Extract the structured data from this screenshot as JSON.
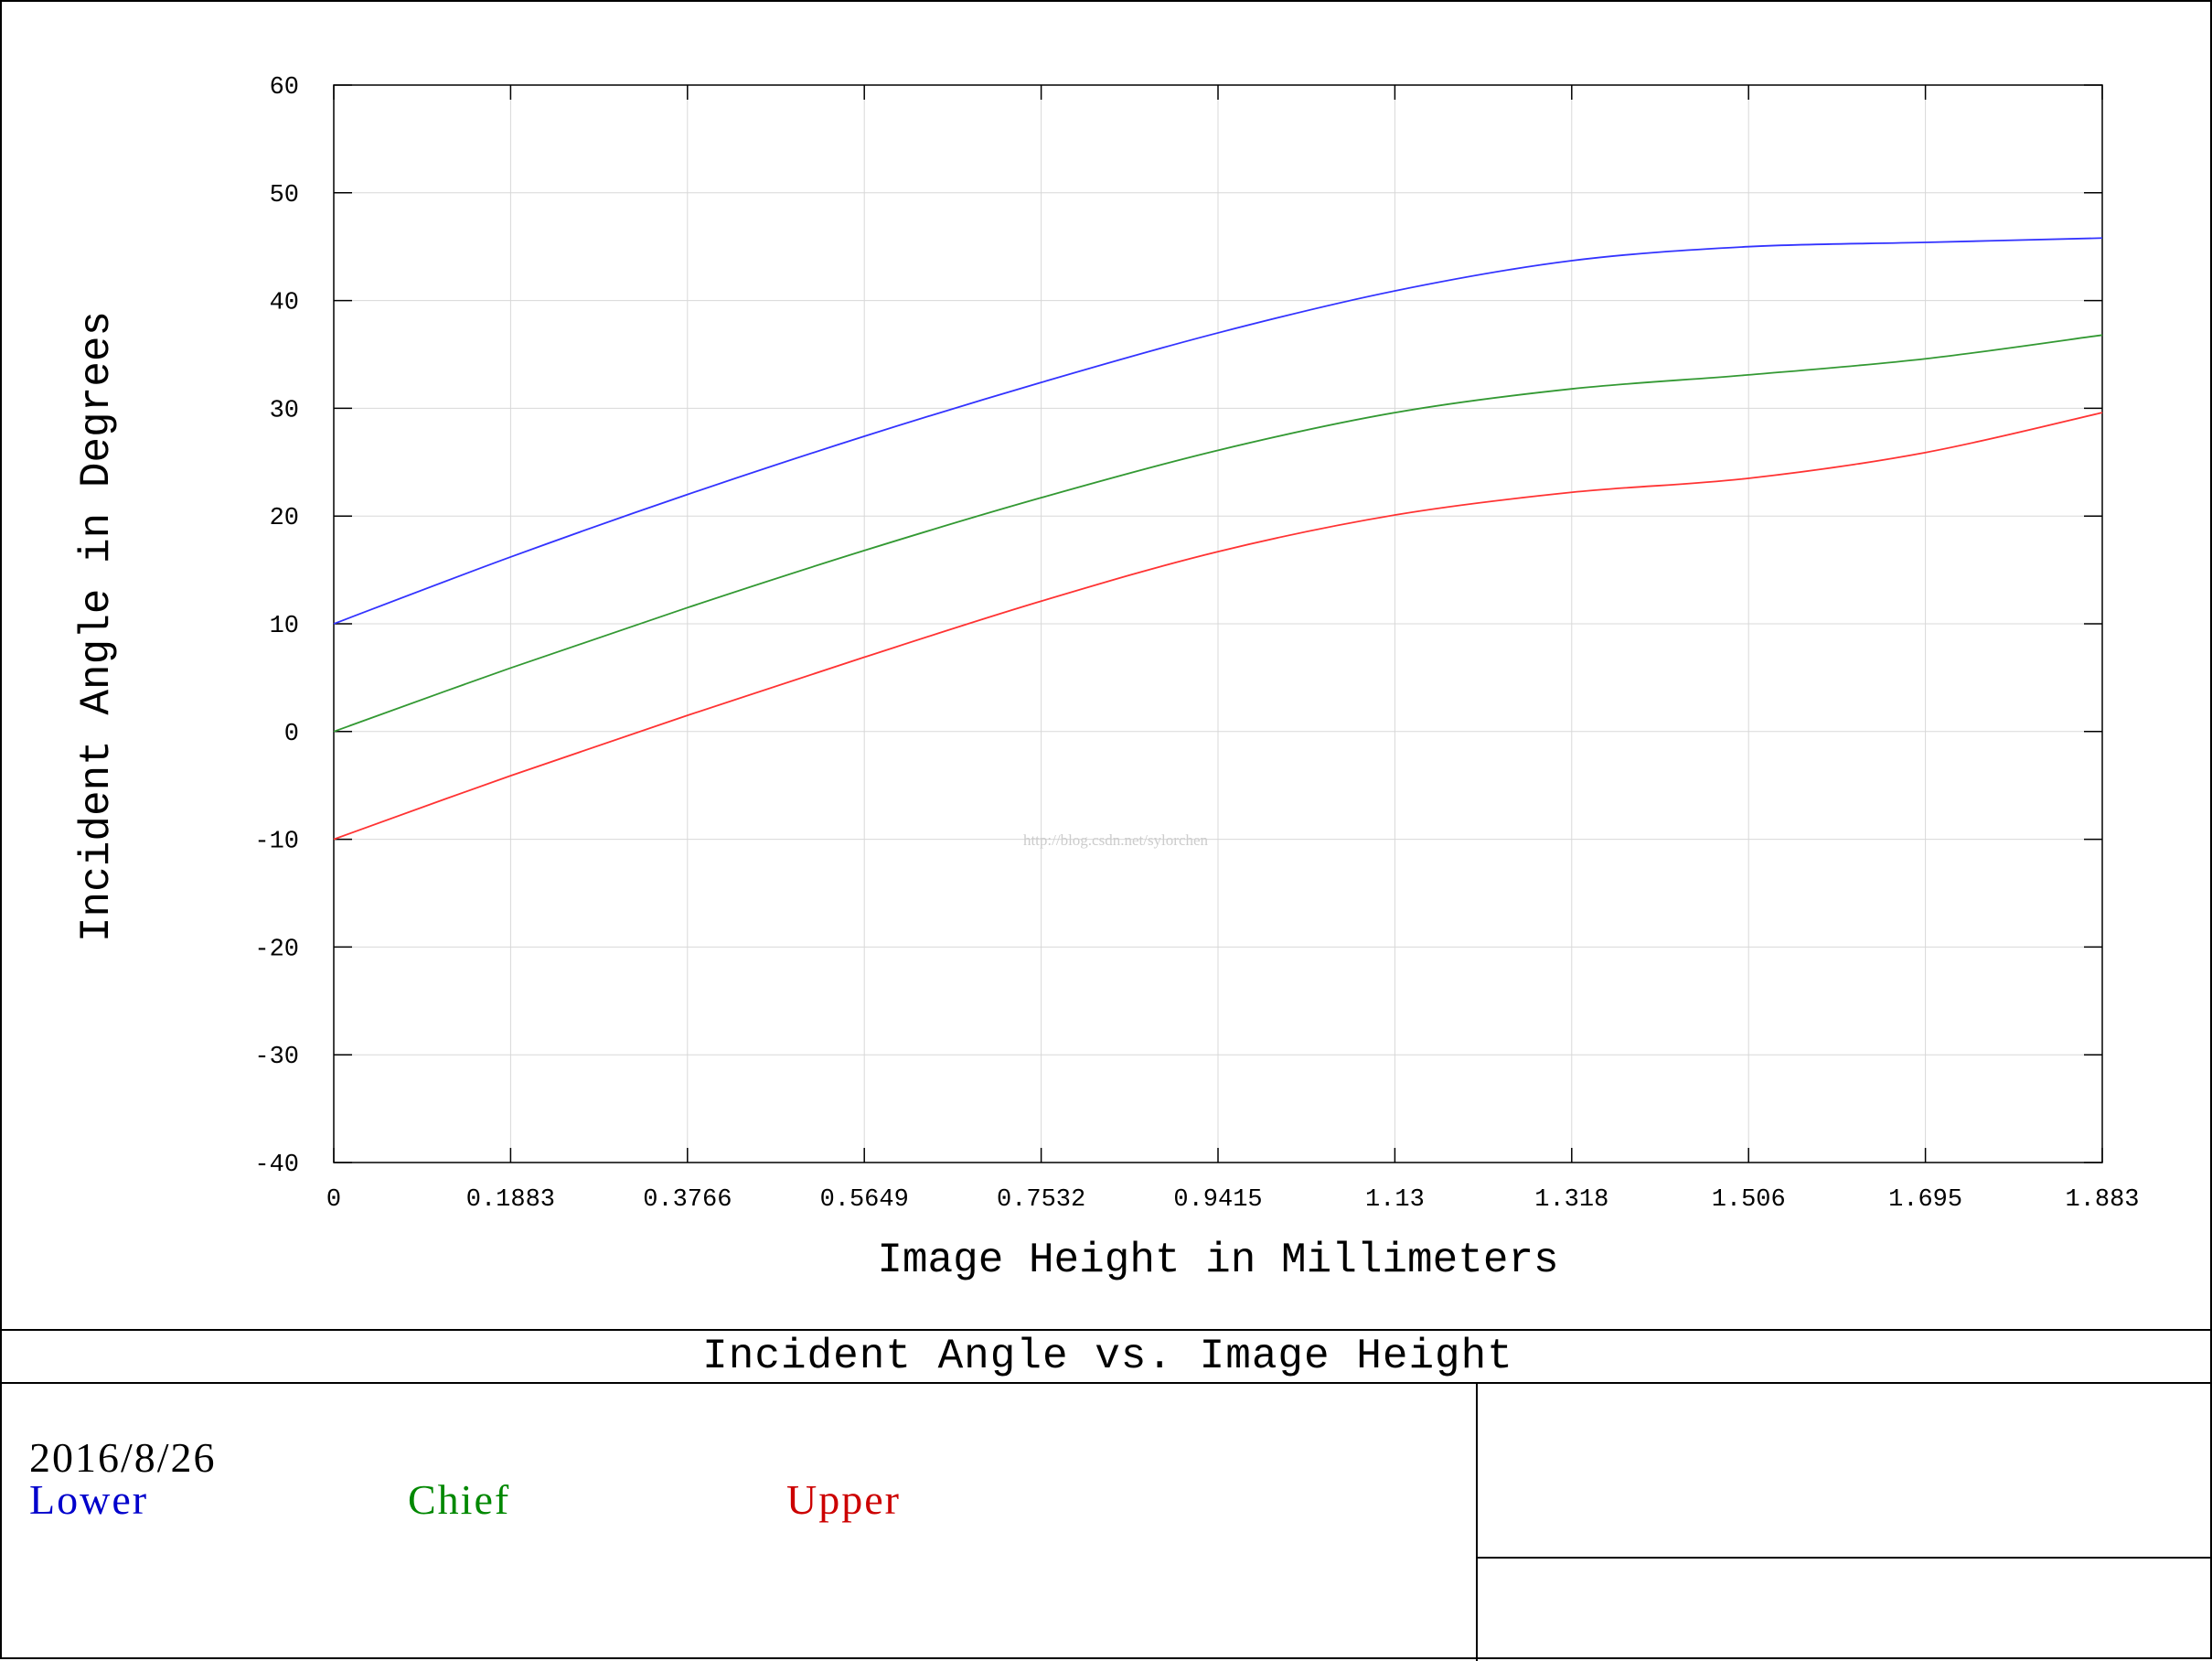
{
  "chart_data": {
    "type": "line",
    "title": "Incident Angle vs. Image Height",
    "xlabel": "Image Height in Millimeters",
    "ylabel": "Incident Angle in Degrees",
    "xlim": [
      0,
      1.883
    ],
    "ylim": [
      -40,
      60
    ],
    "xticks": [
      "0",
      "0.1883",
      "0.3766",
      "0.5649",
      "0.7532",
      "0.9415",
      "1.13",
      "1.318",
      "1.506",
      "1.695",
      "1.883"
    ],
    "yticks": [
      "60",
      "50",
      "40",
      "30",
      "20",
      "10",
      "0",
      "-10",
      "-20",
      "-30",
      "-40"
    ],
    "grid": true,
    "x": [
      0,
      0.1883,
      0.3766,
      0.5649,
      0.7532,
      0.9415,
      1.13,
      1.318,
      1.506,
      1.695,
      1.883
    ],
    "series": [
      {
        "name": "Lower",
        "color": "#3333ff",
        "values": [
          10,
          16.2,
          22.0,
          27.4,
          32.4,
          37.0,
          40.9,
          43.7,
          45.0,
          45.4,
          45.8
        ]
      },
      {
        "name": "Chief",
        "color": "#339933",
        "values": [
          0,
          5.9,
          11.5,
          16.8,
          21.7,
          26.1,
          29.6,
          31.8,
          33.1,
          34.6,
          36.8
        ]
      },
      {
        "name": "Upper",
        "color": "#ff3333",
        "values": [
          -10,
          -4.1,
          1.5,
          6.9,
          12.1,
          16.7,
          20.1,
          22.2,
          23.5,
          25.9,
          29.6
        ]
      }
    ]
  },
  "footer": {
    "date": "2016/8/26",
    "legend": [
      {
        "label": "Lower",
        "color": "#0000cc"
      },
      {
        "label": "Chief",
        "color": "#008800"
      },
      {
        "label": "Upper",
        "color": "#cc0000"
      }
    ]
  },
  "watermark": "http://blog.csdn.net/sylorchen"
}
